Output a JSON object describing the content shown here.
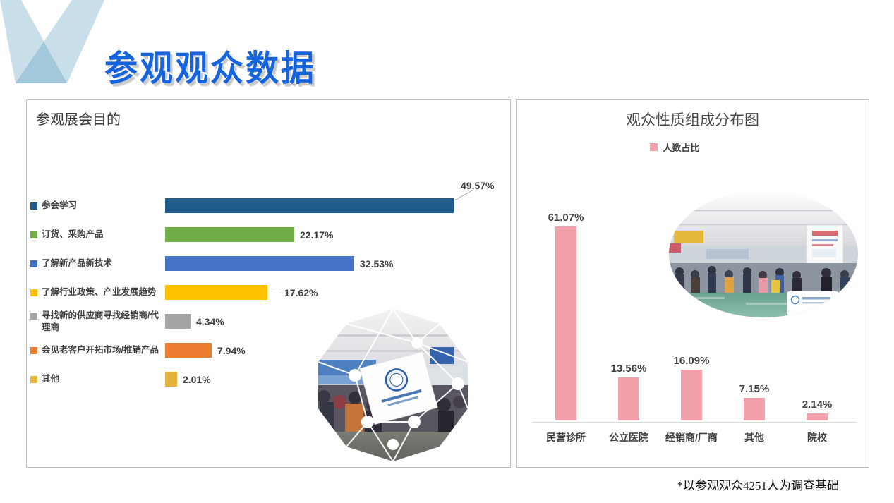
{
  "page": {
    "title": "参观观众数据",
    "footnote": "*以参观观众4251人为调查基础"
  },
  "colors": {
    "title_blue": "#1564DB",
    "panel_border": "#BFBFBF",
    "axis_line": "#D9D9D9",
    "text_dark": "#404040",
    "pink": "#F2A1AA"
  },
  "left_panel": {
    "title": "参观展会目的"
  },
  "right_panel": {
    "title": "观众性质组成分布图",
    "legend_label": "人数占比"
  },
  "chart_data": [
    {
      "type": "bar",
      "orientation": "horizontal",
      "title": "参观展会目的",
      "categories": [
        "参会学习",
        "订货、采购产品",
        "了解新产品新技术",
        "了解行业政策、产业发展趋势",
        "寻找新的供应商寻找经销商/代理商",
        "会见老客户开拓市场/推销产品",
        "其他"
      ],
      "values": [
        49.57,
        22.17,
        32.53,
        17.62,
        4.34,
        7.94,
        2.01
      ],
      "labels": [
        "49.57%",
        "22.17%",
        "32.53%",
        "17.62%",
        "4.34%",
        "7.94%",
        "2.01%"
      ],
      "colors": [
        "#215D8C",
        "#70AD47",
        "#4472C4",
        "#FFC000",
        "#A5A5A5",
        "#ED7D31",
        "#E3B33C"
      ],
      "xlim": [
        0,
        60
      ],
      "grid": false,
      "data_labels": true,
      "legend_position": "category-markers-left"
    },
    {
      "type": "bar",
      "orientation": "vertical",
      "title": "观众性质组成分布图",
      "categories": [
        "民营诊所",
        "公立医院",
        "经销商/厂商",
        "其他",
        "院校"
      ],
      "series": [
        {
          "name": "人数占比",
          "values": [
            61.07,
            13.56,
            16.09,
            7.15,
            2.14
          ]
        }
      ],
      "labels": [
        "61.07%",
        "13.56%",
        "16.09%",
        "7.15%",
        "2.14%"
      ],
      "color": "#F2A1AA",
      "ylim": [
        0,
        70
      ],
      "grid": false,
      "data_labels": true,
      "legend_position": "top-center"
    }
  ]
}
